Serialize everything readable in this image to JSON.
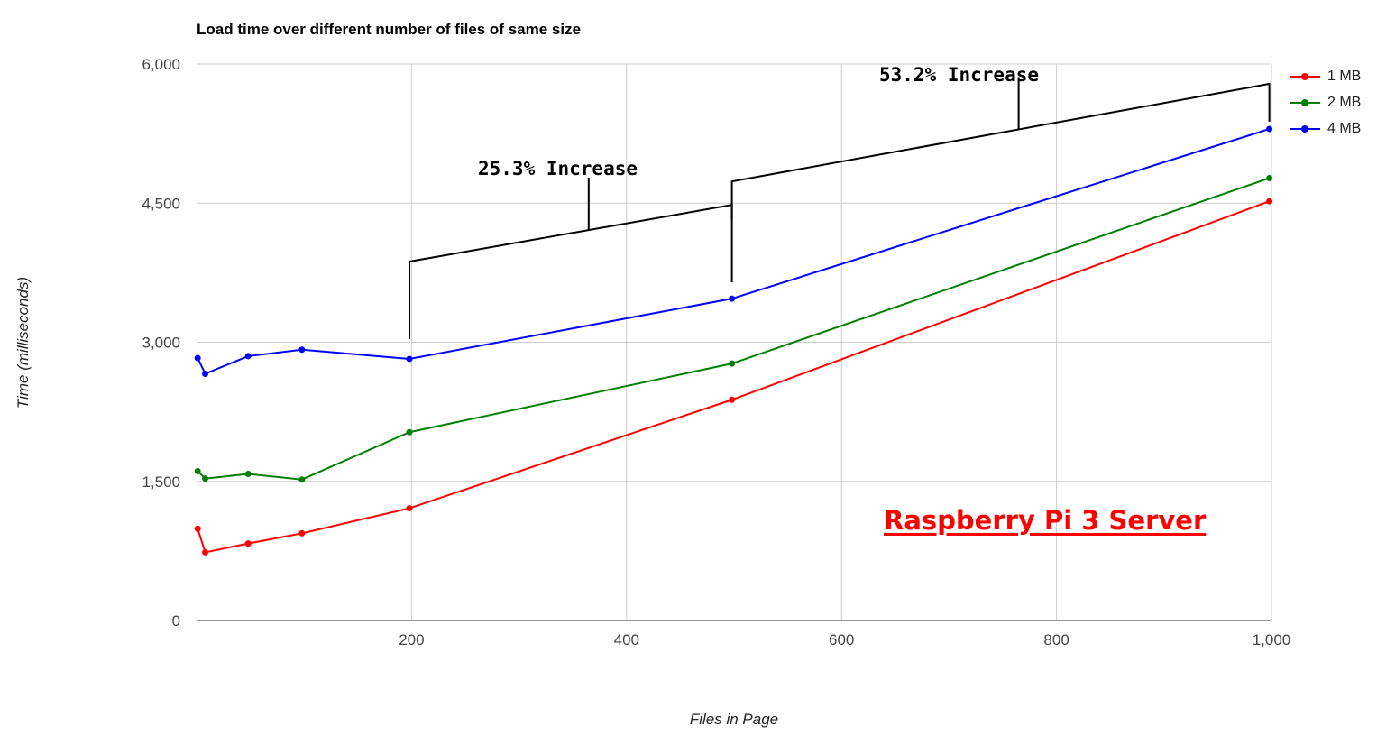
{
  "chart_data": {
    "type": "line",
    "title": "Load time over different number of files of same size",
    "xlabel": "Files in Page",
    "ylabel": "Time (milliseconds)",
    "xlim": [
      0,
      1000
    ],
    "ylim": [
      0,
      6000
    ],
    "x_ticks": [
      200,
      400,
      600,
      800,
      1000
    ],
    "x_tick_labels": [
      "200",
      "400",
      "600",
      "800",
      "1,000"
    ],
    "y_ticks": [
      0,
      1500,
      3000,
      4500,
      6000
    ],
    "y_tick_labels": [
      "0",
      "1,500",
      "3,000",
      "4,500",
      "6,000"
    ],
    "grid": true,
    "legend_position": "right",
    "x": [
      1,
      8,
      48,
      98,
      198,
      498,
      998
    ],
    "series": [
      {
        "name": "1 MB",
        "color": "#ff0000",
        "values": [
          990,
          735,
          830,
          940,
          1210,
          2380,
          4520
        ]
      },
      {
        "name": "2 MB",
        "color": "#008000",
        "values": [
          1610,
          1530,
          1580,
          1520,
          2030,
          2770,
          4770
        ]
      },
      {
        "name": "4 MB",
        "color": "#0000ff",
        "values": [
          2830,
          2660,
          2850,
          2920,
          2820,
          3470,
          5300
        ]
      }
    ],
    "annotations": [
      {
        "text": "25.3% Increase",
        "from_x": 198,
        "to_x": 498
      },
      {
        "text": "53.2% Increase",
        "from_x": 498,
        "to_x": 998
      }
    ],
    "watermark": "Raspberry Pi 3 Server"
  }
}
